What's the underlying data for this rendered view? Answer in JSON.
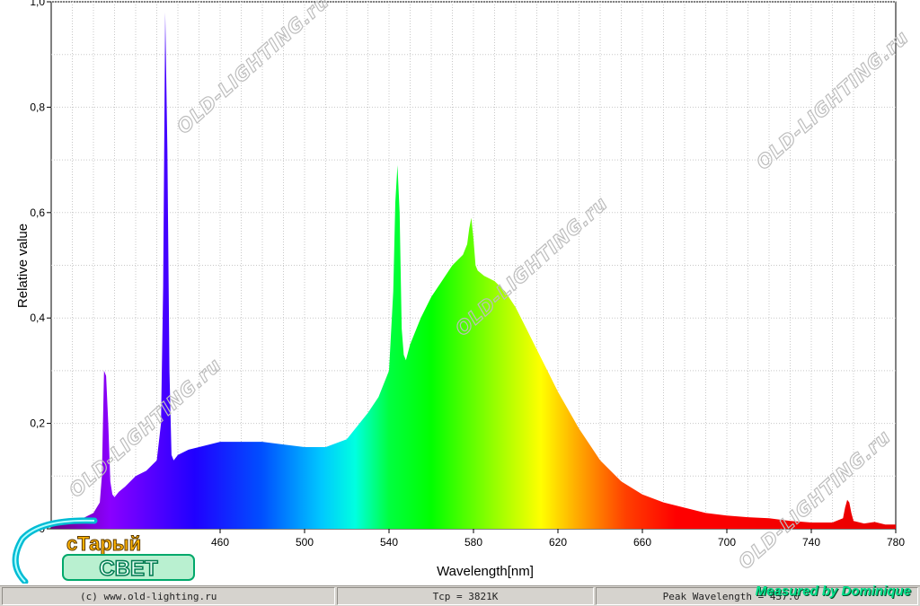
{
  "chart_data": {
    "type": "area",
    "xlabel": "Wavelength[nm]",
    "ylabel": "Relative value",
    "xlim": [
      380,
      780
    ],
    "ylim": [
      0,
      1.0
    ],
    "x_ticks": [
      "460",
      "500",
      "540",
      "580",
      "620",
      "660",
      "700",
      "740",
      "780"
    ],
    "y_ticks": [
      "0",
      "0,2",
      "0,4",
      "0,6",
      "0,8",
      "1,0"
    ],
    "grid": true,
    "series": [
      {
        "x": [
          380,
          390,
          395,
          400,
          403,
          404,
          405,
          406,
          407,
          408,
          409,
          410,
          412,
          415,
          420,
          425,
          430,
          432,
          433,
          434,
          435,
          436,
          437,
          438,
          440,
          445,
          450,
          460,
          470,
          480,
          490,
          500,
          510,
          520,
          530,
          535,
          540,
          542,
          543,
          544,
          545,
          546,
          547,
          548,
          550,
          555,
          560,
          565,
          570,
          575,
          577,
          578,
          579,
          580,
          581,
          582,
          585,
          590,
          595,
          600,
          605,
          610,
          615,
          620,
          630,
          640,
          650,
          660,
          670,
          680,
          690,
          700,
          710,
          720,
          730,
          740,
          750,
          755,
          756,
          757,
          758,
          759,
          760,
          765,
          770,
          775,
          780
        ],
        "y": [
          0.01,
          0.015,
          0.02,
          0.03,
          0.05,
          0.1,
          0.3,
          0.29,
          0.2,
          0.09,
          0.065,
          0.06,
          0.07,
          0.08,
          0.1,
          0.11,
          0.13,
          0.2,
          0.46,
          0.98,
          0.72,
          0.3,
          0.14,
          0.13,
          0.14,
          0.15,
          0.155,
          0.165,
          0.165,
          0.165,
          0.16,
          0.155,
          0.155,
          0.17,
          0.22,
          0.25,
          0.3,
          0.45,
          0.62,
          0.69,
          0.6,
          0.38,
          0.33,
          0.32,
          0.35,
          0.4,
          0.44,
          0.47,
          0.5,
          0.52,
          0.54,
          0.57,
          0.59,
          0.55,
          0.5,
          0.49,
          0.48,
          0.47,
          0.45,
          0.42,
          0.38,
          0.34,
          0.3,
          0.26,
          0.19,
          0.13,
          0.09,
          0.065,
          0.05,
          0.04,
          0.03,
          0.025,
          0.022,
          0.02,
          0.015,
          0.012,
          0.012,
          0.02,
          0.04,
          0.055,
          0.05,
          0.03,
          0.015,
          0.01,
          0.013,
          0.008,
          0.008
        ]
      }
    ]
  },
  "watermark": "OLD-LIGHTING.ru",
  "status": {
    "left": "(c) www.old-lighting.ru",
    "middle": "Tcp = 3821K",
    "right": "Peak Wavelength = 437.0"
  },
  "credit": "Measured by Dominique",
  "logo": {
    "line1": "сТарый",
    "line2": "СВЕТ"
  }
}
